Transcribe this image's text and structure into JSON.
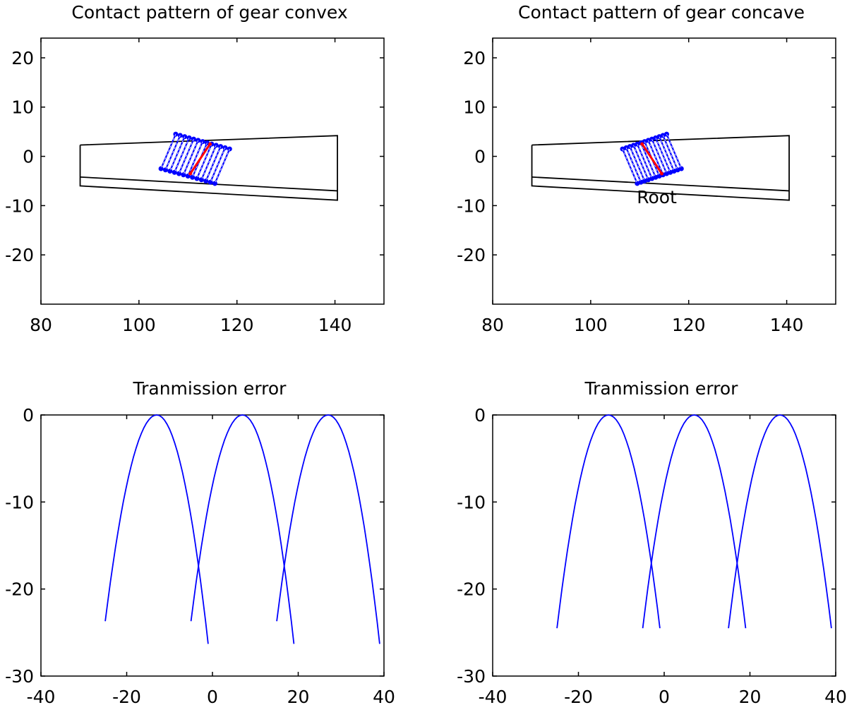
{
  "chart_data": [
    {
      "type": "line",
      "title": "Contact pattern of gear convex",
      "xlim": [
        80,
        150
      ],
      "ylim": [
        -30,
        24
      ],
      "xticks": [
        80,
        100,
        120,
        140
      ],
      "yticks": [
        20,
        10,
        0,
        -10,
        -20
      ],
      "grid": false,
      "tooth_outline": [
        [
          [
            88,
            2.3
          ],
          [
            140.5,
            4.2
          ],
          [
            140.5,
            -8.9
          ],
          [
            88,
            -6.0
          ],
          [
            88,
            2.3
          ]
        ],
        [
          [
            88,
            -4.2
          ],
          [
            140.5,
            -7.0
          ]
        ]
      ],
      "contact_lines": {
        "color": "#0000ff",
        "count": 13,
        "start": [
          [
            107.5,
            4.5
          ],
          [
            104.5,
            -2.5
          ]
        ],
        "end": [
          [
            118.5,
            1.5
          ],
          [
            115.5,
            -5.5
          ]
        ]
      },
      "path_of_contact": {
        "color": "#ff0000",
        "points": [
          [
            114.5,
            2.5
          ],
          [
            110.5,
            -3.5
          ]
        ]
      },
      "annotations": []
    },
    {
      "type": "line",
      "title": "Contact pattern of gear concave",
      "xlim": [
        80,
        150
      ],
      "ylim": [
        -30,
        24
      ],
      "xticks": [
        80,
        100,
        120,
        140
      ],
      "yticks": [
        20,
        10,
        0,
        -10,
        -20
      ],
      "grid": false,
      "tooth_outline": [
        [
          [
            88,
            2.3
          ],
          [
            140.5,
            4.2
          ],
          [
            140.5,
            -8.9
          ],
          [
            88,
            -6.0
          ],
          [
            88,
            2.3
          ]
        ],
        [
          [
            88,
            -4.2
          ],
          [
            140.5,
            -7.0
          ]
        ]
      ],
      "contact_lines": {
        "color": "#0000ff",
        "count": 13,
        "start": [
          [
            106.5,
            1.5
          ],
          [
            109.5,
            -5.5
          ]
        ],
        "end": [
          [
            115.5,
            4.5
          ],
          [
            118.5,
            -2.5
          ]
        ]
      },
      "path_of_contact": {
        "color": "#ff0000",
        "points": [
          [
            110.5,
            2.5
          ],
          [
            114.5,
            -3.5
          ]
        ]
      },
      "annotations": [
        {
          "text": "Root",
          "x": 113.5,
          "y": -9.5
        }
      ]
    },
    {
      "type": "line",
      "title": "Tranmission error",
      "xlim": [
        -40,
        40
      ],
      "ylim": [
        -30,
        0
      ],
      "xticks": [
        -40,
        -20,
        0,
        20,
        40
      ],
      "yticks": [
        0,
        -10,
        -20,
        -30
      ],
      "grid": false,
      "series": [
        {
          "color": "#0000ff",
          "left_end": [
            -25,
            -23.7
          ],
          "vertex": [
            -13,
            0
          ],
          "right_end": [
            -1,
            -26.3
          ]
        },
        {
          "color": "#0000ff",
          "left_end": [
            -5,
            -23.7
          ],
          "vertex": [
            7,
            0
          ],
          "right_end": [
            19,
            -26.3
          ]
        },
        {
          "color": "#0000ff",
          "left_end": [
            15,
            -23.7
          ],
          "vertex": [
            27,
            0
          ],
          "right_end": [
            39,
            -26.3
          ]
        }
      ]
    },
    {
      "type": "line",
      "title": "Tranmission error",
      "xlim": [
        -40,
        40
      ],
      "ylim": [
        -30,
        0
      ],
      "xticks": [
        -40,
        -20,
        0,
        20,
        40
      ],
      "yticks": [
        0,
        -10,
        -20,
        -30
      ],
      "grid": false,
      "series": [
        {
          "color": "#0000ff",
          "left_end": [
            -25,
            -24.5
          ],
          "vertex": [
            -13,
            0
          ],
          "right_end": [
            -1,
            -24.5
          ]
        },
        {
          "color": "#0000ff",
          "left_end": [
            -5,
            -24.5
          ],
          "vertex": [
            7,
            0
          ],
          "right_end": [
            19,
            -24.5
          ]
        },
        {
          "color": "#0000ff",
          "left_end": [
            15,
            -24.5
          ],
          "vertex": [
            27,
            0
          ],
          "right_end": [
            39,
            -24.5
          ]
        }
      ]
    }
  ]
}
